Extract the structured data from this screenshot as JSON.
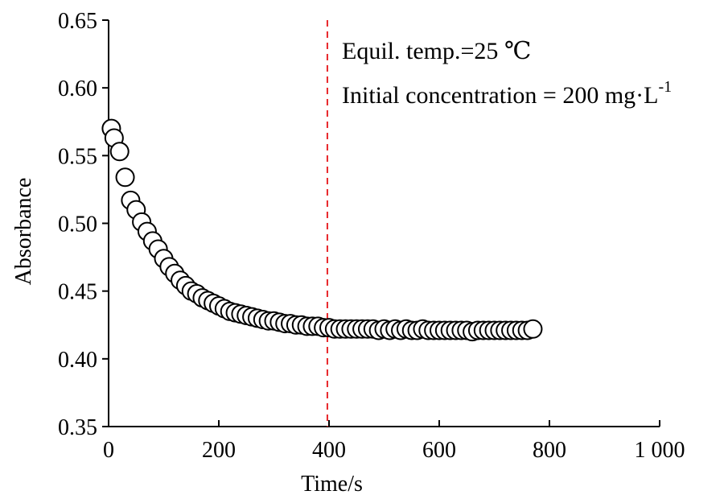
{
  "chart_data": {
    "type": "scatter",
    "xlabel": "Time/s",
    "ylabel": "Absorbance",
    "xlim": [
      0,
      1000
    ],
    "ylim": [
      0.35,
      0.65
    ],
    "x_ticks": [
      0,
      200,
      400,
      600,
      800,
      1000
    ],
    "x_tick_labels": [
      "0",
      "200",
      "400",
      "600",
      "800",
      "1 000"
    ],
    "y_ticks": [
      0.35,
      0.4,
      0.45,
      0.5,
      0.55,
      0.6,
      0.65
    ],
    "y_tick_labels": [
      "0.35",
      "0.40",
      "0.45",
      "0.50",
      "0.55",
      "0.60",
      "0.65"
    ],
    "grid": false,
    "reference_line": {
      "x": 397,
      "color": "#e8262a",
      "style": "dashed"
    },
    "annotations": {
      "line1": "Equil. temp.=25 ℃",
      "line2": "Initial concentration = 200 mg·L",
      "line2_superscript": "-1"
    },
    "marker": {
      "shape": "open-circle",
      "stroke": "#000000",
      "fill": "#ffffff"
    },
    "series": [
      {
        "x": [
          5,
          10,
          20,
          30,
          40,
          50,
          60,
          70,
          80,
          90,
          100,
          110,
          120,
          130,
          140,
          150,
          160,
          170,
          180,
          190,
          200,
          210,
          220,
          230,
          240,
          250,
          260,
          270,
          280,
          290,
          300,
          310,
          320,
          330,
          340,
          350,
          360,
          370,
          380,
          390,
          400,
          410,
          420,
          430,
          440,
          450,
          460,
          470,
          480,
          490,
          500,
          510,
          520,
          530,
          540,
          550,
          560,
          570,
          580,
          590,
          600,
          610,
          620,
          630,
          640,
          650,
          660,
          670,
          680,
          690,
          700,
          710,
          720,
          730,
          740,
          750,
          760,
          770
        ],
        "y": [
          0.57,
          0.563,
          0.553,
          0.534,
          0.517,
          0.51,
          0.501,
          0.494,
          0.487,
          0.481,
          0.474,
          0.468,
          0.463,
          0.458,
          0.454,
          0.45,
          0.448,
          0.445,
          0.443,
          0.441,
          0.439,
          0.437,
          0.435,
          0.434,
          0.433,
          0.432,
          0.431,
          0.43,
          0.429,
          0.428,
          0.428,
          0.427,
          0.426,
          0.426,
          0.425,
          0.425,
          0.424,
          0.424,
          0.424,
          0.423,
          0.423,
          0.422,
          0.422,
          0.422,
          0.422,
          0.422,
          0.422,
          0.422,
          0.422,
          0.421,
          0.422,
          0.421,
          0.422,
          0.421,
          0.422,
          0.421,
          0.421,
          0.422,
          0.421,
          0.421,
          0.421,
          0.421,
          0.421,
          0.421,
          0.421,
          0.421,
          0.42,
          0.421,
          0.421,
          0.421,
          0.421,
          0.421,
          0.421,
          0.421,
          0.421,
          0.421,
          0.421,
          0.422
        ]
      }
    ]
  }
}
